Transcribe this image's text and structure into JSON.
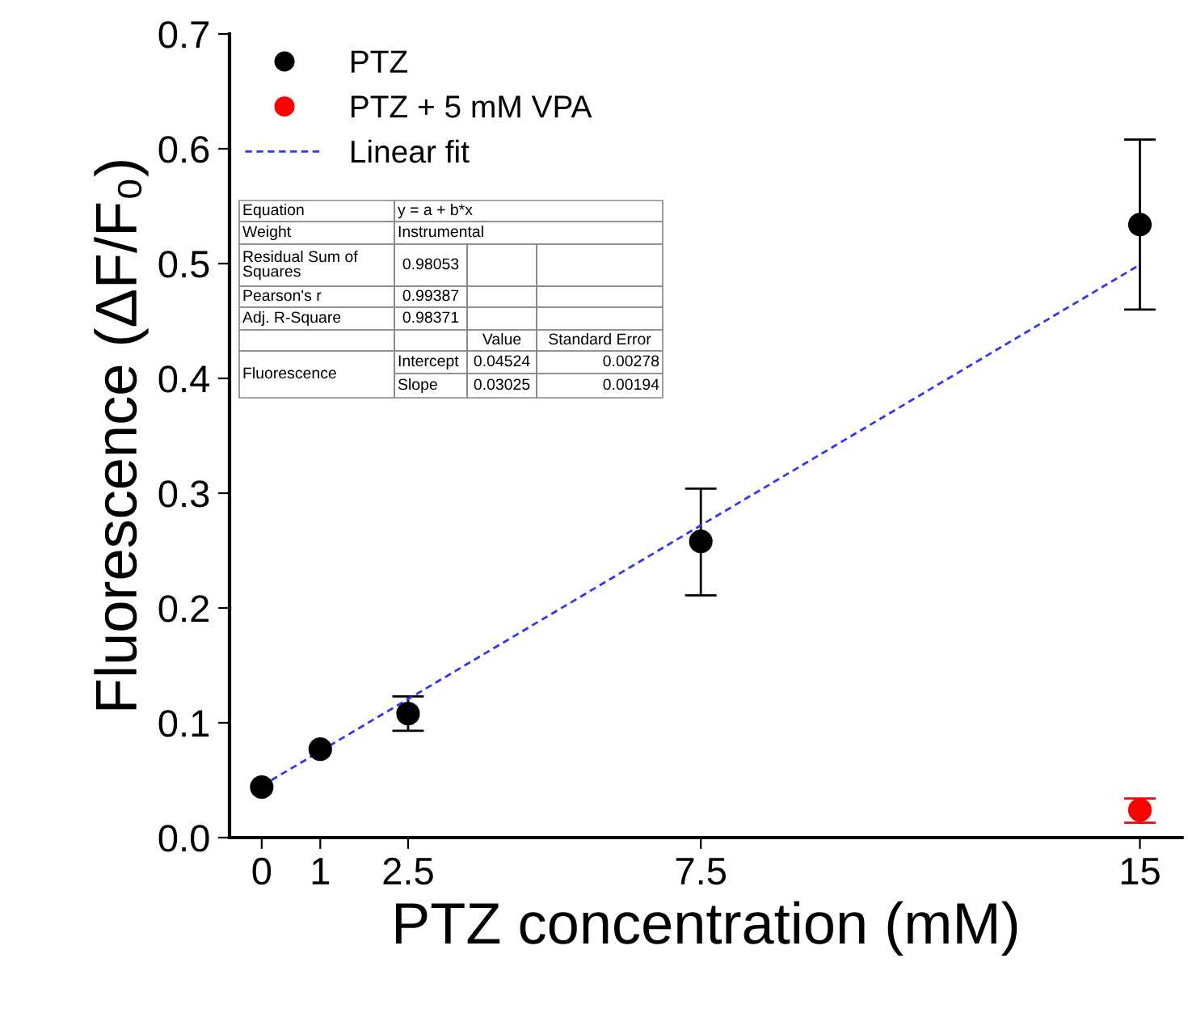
{
  "chart_data": {
    "type": "scatter",
    "xlabel": "PTZ concentration (mM)",
    "ylabel": "Fluorescence (ΔF/F₀)",
    "xlim": [
      -0.55,
      15.72
    ],
    "xticks": [
      0,
      1,
      {
        "value": 2.5,
        "label": "2.5"
      },
      {
        "value": 7.5,
        "label": "7.5"
      },
      15
    ],
    "ylim": [
      0,
      0.7
    ],
    "yticks": [
      {
        "value": 0,
        "label": "0.0"
      },
      0.1,
      0.2,
      0.3,
      0.4,
      0.5,
      0.6,
      0.7
    ],
    "grid": false,
    "legend": "top left",
    "marker": "circle",
    "series": [
      {
        "name": "PTZ",
        "color": "#000000",
        "x": [
          0,
          1,
          2.5,
          7.5,
          15
        ],
        "values": [
          0.044,
          0.077,
          0.108,
          0.258,
          0.534
        ],
        "errors": [
          null,
          null,
          [
            0.093,
            0.123
          ],
          [
            0.211,
            0.304
          ],
          [
            0.46,
            0.608
          ]
        ]
      },
      {
        "name": "PTZ + 5 mM VPA",
        "color": "#ff0000",
        "x": [
          15
        ],
        "values": [
          0.024
        ],
        "errors": [
          [
            0.013,
            0.034
          ]
        ]
      },
      {
        "name": "Linear fit",
        "type": "line",
        "marker": "none",
        "line_style": "dashed",
        "color": "#3333ff",
        "x": [
          0,
          15
        ],
        "values": [
          0.045,
          0.499
        ]
      }
    ],
    "annotations": [
      "Equation",
      "y = a + b*x",
      "Weight",
      "Instrumental",
      "Residual Sum of Squares",
      "0.98053",
      "Pearson's r",
      "0.99387",
      "Adj. R-Square",
      "0.98371",
      "Value",
      "Standard Error",
      "Fluorescence",
      "Intercept",
      "0.04524",
      "0.00278",
      "Slope",
      "0.03025",
      "0.00194"
    ]
  }
}
